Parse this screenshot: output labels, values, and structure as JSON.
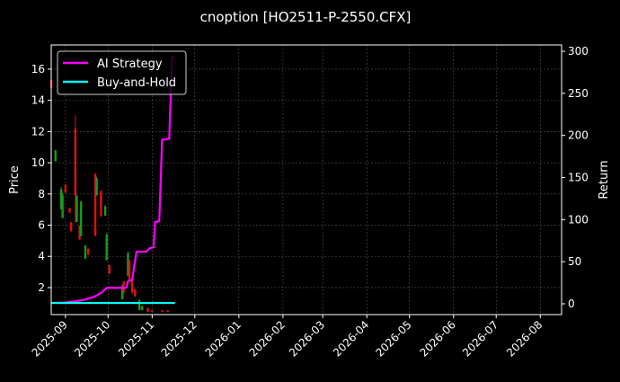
{
  "chart_data": {
    "type": "candlestick+line",
    "title": "cnoption [HO2511-P-2550.CFX]",
    "ylabel": "Price",
    "y2label": "Return",
    "xlim": [
      "2025-08-22",
      "2026-08-16"
    ],
    "ylim": [
      0.27,
      17.55
    ],
    "y2lim": [
      -12.8,
      307.5
    ],
    "grid": true,
    "legend_position": "top-left",
    "xticks": [
      "2025-09",
      "2025-10",
      "2025-11",
      "2025-12",
      "2026-01",
      "2026-02",
      "2026-03",
      "2026-04",
      "2026-05",
      "2026-06",
      "2026-07",
      "2026-08"
    ],
    "yticks": [
      2,
      4,
      6,
      8,
      10,
      12,
      14,
      16
    ],
    "y2ticks": [
      0,
      50,
      100,
      150,
      200,
      250,
      300
    ],
    "colors": {
      "up": "#1a9a1a",
      "down": "#e01010",
      "strategy": "#ff00ff",
      "buyhold": "#00ffff",
      "grid": "#555555"
    },
    "candles": [
      {
        "date": "2025-08-22",
        "open": 15.3,
        "high": 15.4,
        "low": 14.7,
        "close": 14.8
      },
      {
        "date": "2025-08-25",
        "open": 10.1,
        "high": 10.8,
        "low": 10.1,
        "close": 10.8
      },
      {
        "date": "2025-08-29",
        "open": 7.0,
        "high": 8.45,
        "low": 7.0,
        "close": 8.3
      },
      {
        "date": "2025-08-30",
        "open": 6.45,
        "high": 8.05,
        "low": 6.45,
        "close": 7.9
      },
      {
        "date": "2025-09-01",
        "open": 8.6,
        "high": 8.6,
        "low": 8.05,
        "close": 8.1
      },
      {
        "date": "2025-09-04",
        "open": 7.1,
        "high": 7.1,
        "low": 6.8,
        "close": 6.8
      },
      {
        "date": "2025-09-05",
        "open": 6.2,
        "high": 6.2,
        "low": 5.6,
        "close": 5.6
      },
      {
        "date": "2025-09-08",
        "open": 12.2,
        "high": 13.05,
        "low": 6.2,
        "close": 7.9
      },
      {
        "date": "2025-09-09",
        "open": 6.2,
        "high": 7.9,
        "low": 6.2,
        "close": 7.9
      },
      {
        "date": "2025-09-11",
        "open": 6.0,
        "high": 6.0,
        "low": 5.05,
        "close": 5.1
      },
      {
        "date": "2025-09-12",
        "open": 5.3,
        "high": 7.6,
        "low": 5.3,
        "close": 7.5
      },
      {
        "date": "2025-09-15",
        "open": 3.85,
        "high": 4.7,
        "low": 3.85,
        "close": 4.7
      },
      {
        "date": "2025-09-17",
        "open": 4.5,
        "high": 4.5,
        "low": 4.1,
        "close": 4.1
      },
      {
        "date": "2025-09-22",
        "open": 9.3,
        "high": 9.3,
        "low": 5.3,
        "close": 5.3
      },
      {
        "date": "2025-09-23",
        "open": 7.9,
        "high": 9.1,
        "low": 7.9,
        "close": 9.0
      },
      {
        "date": "2025-09-26",
        "open": 8.2,
        "high": 8.2,
        "low": 6.5,
        "close": 6.6
      },
      {
        "date": "2025-09-29",
        "open": 6.6,
        "high": 7.3,
        "low": 6.6,
        "close": 7.2
      },
      {
        "date": "2025-09-30",
        "open": 3.75,
        "high": 5.5,
        "low": 3.75,
        "close": 5.4
      },
      {
        "date": "2025-10-02",
        "open": 3.45,
        "high": 3.45,
        "low": 2.85,
        "close": 2.9
      },
      {
        "date": "2025-10-11",
        "open": 1.25,
        "high": 2.2,
        "low": 1.25,
        "close": 2.1
      },
      {
        "date": "2025-10-12",
        "open": 2.4,
        "high": 2.4,
        "low": 1.6,
        "close": 1.7
      },
      {
        "date": "2025-10-15",
        "open": 2.75,
        "high": 4.3,
        "low": 2.75,
        "close": 4.2
      },
      {
        "date": "2025-10-16",
        "open": 3.75,
        "high": 3.75,
        "low": 2.4,
        "close": 2.5
      },
      {
        "date": "2025-10-18",
        "open": 2.6,
        "high": 2.6,
        "low": 1.6,
        "close": 1.7
      },
      {
        "date": "2025-10-20",
        "open": 1.9,
        "high": 1.9,
        "low": 1.4,
        "close": 1.45
      },
      {
        "date": "2025-10-23",
        "open": 0.55,
        "high": 1.25,
        "low": 0.55,
        "close": 1.2
      },
      {
        "date": "2025-10-25",
        "open": 0.55,
        "high": 0.85,
        "low": 0.55,
        "close": 0.8
      },
      {
        "date": "2025-10-29",
        "open": 0.7,
        "high": 0.7,
        "low": 0.45,
        "close": 0.45
      },
      {
        "date": "2025-11-01",
        "open": 0.55,
        "high": 0.55,
        "low": 0.45,
        "close": 0.45
      },
      {
        "date": "2025-11-08",
        "open": 0.55,
        "high": 0.55,
        "low": 0.45,
        "close": 0.45
      },
      {
        "date": "2025-11-12",
        "open": 0.55,
        "high": 0.55,
        "low": 0.45,
        "close": 0.45
      }
    ],
    "series": [
      {
        "name": "AI Strategy",
        "axis": "right",
        "points": [
          [
            "2025-08-22",
            1
          ],
          [
            "2025-09-01",
            1.5
          ],
          [
            "2025-09-08",
            3
          ],
          [
            "2025-09-15",
            5
          ],
          [
            "2025-09-22",
            9
          ],
          [
            "2025-09-26",
            13
          ],
          [
            "2025-09-30",
            19
          ],
          [
            "2025-10-13",
            19
          ],
          [
            "2025-10-14",
            20
          ],
          [
            "2025-10-15",
            27
          ],
          [
            "2025-10-17",
            28
          ],
          [
            "2025-10-18",
            29
          ],
          [
            "2025-10-21",
            62
          ],
          [
            "2025-10-28",
            62
          ],
          [
            "2025-10-30",
            66
          ],
          [
            "2025-11-02",
            67
          ],
          [
            "2025-11-03",
            97
          ],
          [
            "2025-11-06",
            98
          ],
          [
            "2025-11-08",
            195
          ],
          [
            "2025-11-13",
            196
          ],
          [
            "2025-11-15",
            293
          ],
          [
            "2025-11-17",
            293
          ]
        ]
      },
      {
        "name": "Buy-and-Hold",
        "axis": "right",
        "points": [
          [
            "2025-08-22",
            1
          ],
          [
            "2025-11-17",
            1
          ]
        ]
      }
    ]
  }
}
